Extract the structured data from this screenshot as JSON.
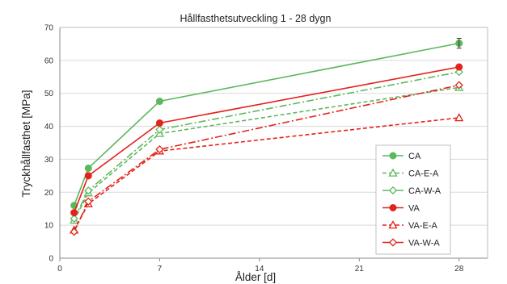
{
  "chart_data": {
    "type": "line",
    "title": "Hållfasthetsutveckling 1 - 28 dygn",
    "xlabel": "Ålder [d]",
    "ylabel": "Tryckhållfasthet [MPa]",
    "xlim": [
      0,
      30
    ],
    "ylim": [
      0,
      70
    ],
    "xticks": [
      0,
      7,
      14,
      21,
      28
    ],
    "yticks": [
      0,
      10,
      20,
      30,
      40,
      50,
      60,
      70
    ],
    "grid": "horizontal",
    "legend_position": "right",
    "x": [
      1,
      2,
      7,
      28
    ],
    "series": [
      {
        "name": "CA",
        "values": [
          16.0,
          27.3,
          47.6,
          65.2
        ],
        "color": "#5cb85c",
        "dash": "solid",
        "marker": "circle-filled"
      },
      {
        "name": "CA-E-A",
        "values": [
          11.5,
          19.8,
          37.8,
          51.8
        ],
        "color": "#5cb85c",
        "dash": "dash",
        "marker": "triangle-open"
      },
      {
        "name": "CA-W-A",
        "values": [
          12.0,
          20.5,
          39.0,
          56.5
        ],
        "color": "#5cb85c",
        "dash": "dashdot",
        "marker": "diamond-open"
      },
      {
        "name": "VA",
        "values": [
          13.8,
          25.0,
          41.0,
          58.0
        ],
        "color": "#e2231a",
        "dash": "solid",
        "marker": "circle-filled"
      },
      {
        "name": "VA-E-A",
        "values": [
          8.5,
          16.5,
          32.5,
          42.6
        ],
        "color": "#e2231a",
        "dash": "dash",
        "marker": "triangle-open"
      },
      {
        "name": "VA-W-A",
        "values": [
          8.0,
          17.2,
          33.0,
          52.5
        ],
        "color": "#e2231a",
        "dash": "dashdot",
        "marker": "diamond-open"
      }
    ]
  }
}
